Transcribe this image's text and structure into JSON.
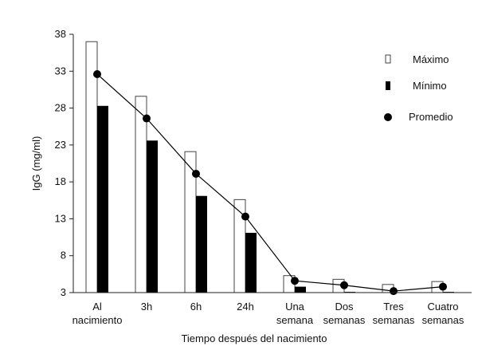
{
  "chart_data": {
    "type": "bar",
    "xlabel": "Tiempo después del nacimiento",
    "ylabel": "IgG (mg/ml)",
    "ylim": [
      3,
      38
    ],
    "yticks": [
      3,
      8,
      13,
      18,
      23,
      28,
      33,
      38
    ],
    "categories": [
      [
        "Al",
        "nacimiento"
      ],
      [
        "3h"
      ],
      [
        "6h"
      ],
      [
        "24h"
      ],
      [
        "Una",
        "semana"
      ],
      [
        "Dos",
        "semanas"
      ],
      [
        "Tres",
        "semanas"
      ],
      [
        "Cuatro",
        "semanas"
      ]
    ],
    "series": [
      {
        "name": "Máximo",
        "kind": "bar",
        "color": "#ffffff",
        "stroke": "#444444",
        "values": [
          37.0,
          29.6,
          22.1,
          15.6,
          5.3,
          4.8,
          4.1,
          4.5
        ]
      },
      {
        "name": "Mínimo",
        "kind": "bar",
        "color": "#000000",
        "values": [
          28.3,
          23.6,
          16.1,
          11.1,
          3.8,
          3.1,
          3.0,
          3.1
        ]
      },
      {
        "name": "Promedio",
        "kind": "line",
        "color": "#000000",
        "values": [
          32.6,
          26.6,
          19.1,
          13.3,
          4.6,
          4.0,
          3.2,
          3.8
        ]
      }
    ],
    "legend": "top-right",
    "grid": false
  }
}
